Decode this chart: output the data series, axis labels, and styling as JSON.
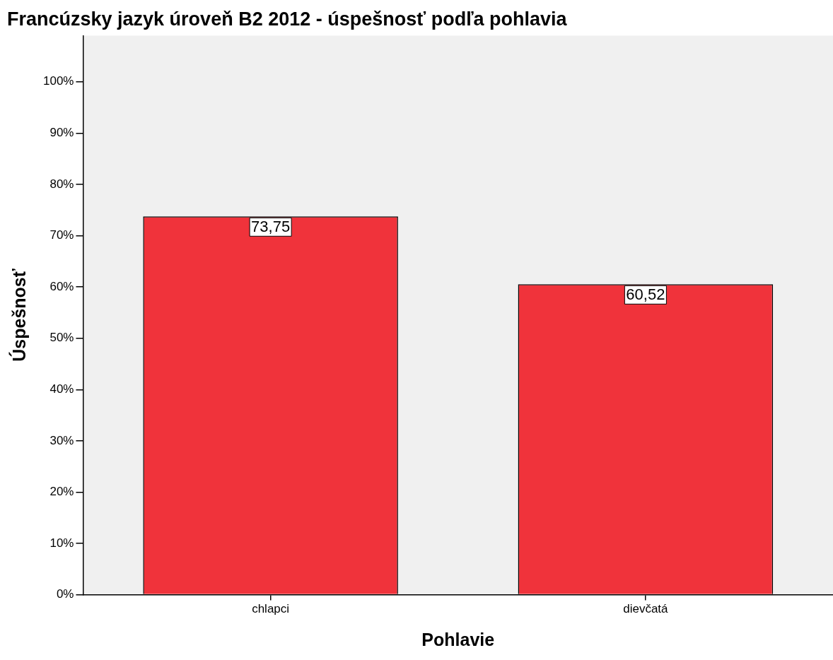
{
  "chart_data": {
    "type": "bar",
    "title": "Francúzsky jazyk úroveň B2 2012 - úspešnosť podľa pohlavia",
    "xlabel": "Pohlavie",
    "ylabel": "Úspešnosť",
    "categories": [
      "chlapci",
      "dievčatá"
    ],
    "values": [
      73.75,
      60.52
    ],
    "color": "#f0333b",
    "value_labels": [
      "73,75",
      "60,52"
    ],
    "ylim": [
      0,
      109
    ],
    "yticks": [
      {
        "value": 0,
        "label": "0%"
      },
      {
        "value": 10,
        "label": "10%"
      },
      {
        "value": 20,
        "label": "20%"
      },
      {
        "value": 30,
        "label": "30%"
      },
      {
        "value": 40,
        "label": "40%"
      },
      {
        "value": 50,
        "label": "50%"
      },
      {
        "value": 60,
        "label": "60%"
      },
      {
        "value": 70,
        "label": "70%"
      },
      {
        "value": 80,
        "label": "80%"
      },
      {
        "value": 90,
        "label": "90%"
      },
      {
        "value": 100,
        "label": "100%"
      }
    ],
    "grid": false,
    "legend": false
  }
}
